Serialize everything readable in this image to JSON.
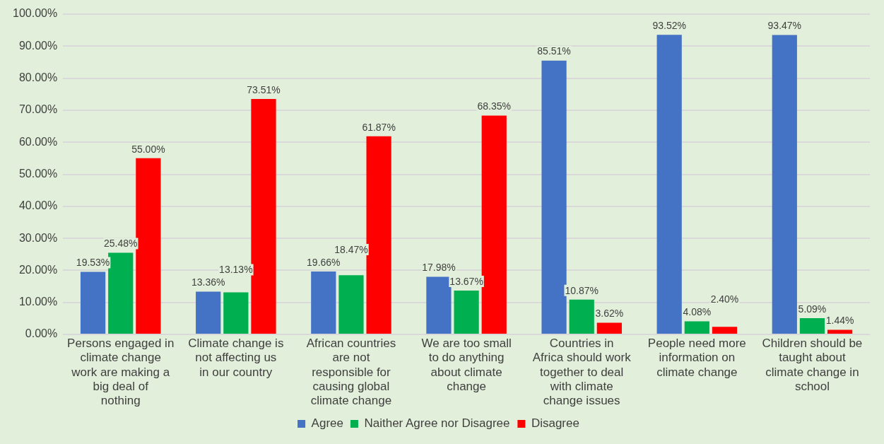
{
  "chart_data": {
    "type": "bar",
    "categories": [
      "Persons engaged in climate change work are making a big deal of nothing",
      "Climate change is not affecting us in our country",
      "African countries are not responsible for causing global climate change",
      "We are too small to do anything about climate change",
      "Countries in Africa should work together to deal with climate change issues",
      "People need more information on climate change",
      "Children should be taught about climate change in school"
    ],
    "series": [
      {
        "name": "Agree",
        "color": "#4472c4",
        "values": [
          19.53,
          13.36,
          19.66,
          17.98,
          85.51,
          93.52,
          93.47
        ],
        "value_labels": [
          "19.53%",
          "13.36%",
          "19.66%",
          "17.98%",
          "85.51%",
          "93.52%",
          "93.47%"
        ]
      },
      {
        "name": "Naither Agree nor Disagree",
        "color": "#00b050",
        "values": [
          25.48,
          13.13,
          18.47,
          13.67,
          10.87,
          4.08,
          5.09
        ],
        "value_labels": [
          "25.48%",
          "13.13%",
          "18.47%",
          "13.67%",
          "10.87%",
          "4.08%",
          "5.09%"
        ]
      },
      {
        "name": "Disagree",
        "color": "#ff0000",
        "values": [
          55.0,
          73.51,
          61.87,
          68.35,
          3.62,
          2.4,
          1.44
        ],
        "value_labels": [
          "55.00%",
          "73.51%",
          "61.87%",
          "68.35%",
          "3.62%",
          "2.40%",
          "1.44%"
        ]
      }
    ],
    "ylim": [
      0,
      100
    ],
    "yticks": [
      {
        "value": 0,
        "label": "0.00%"
      },
      {
        "value": 10,
        "label": "10.00%"
      },
      {
        "value": 20,
        "label": "20.00%"
      },
      {
        "value": 30,
        "label": "30.00%"
      },
      {
        "value": 40,
        "label": "40.00%"
      },
      {
        "value": 50,
        "label": "50.00%"
      },
      {
        "value": 60,
        "label": "60.00%"
      },
      {
        "value": 70,
        "label": "70.00%"
      },
      {
        "value": 80,
        "label": "80.00%"
      },
      {
        "value": 90,
        "label": "90.00%"
      },
      {
        "value": 100,
        "label": "100.00%"
      }
    ],
    "grid": "y",
    "legend": "bottom"
  }
}
